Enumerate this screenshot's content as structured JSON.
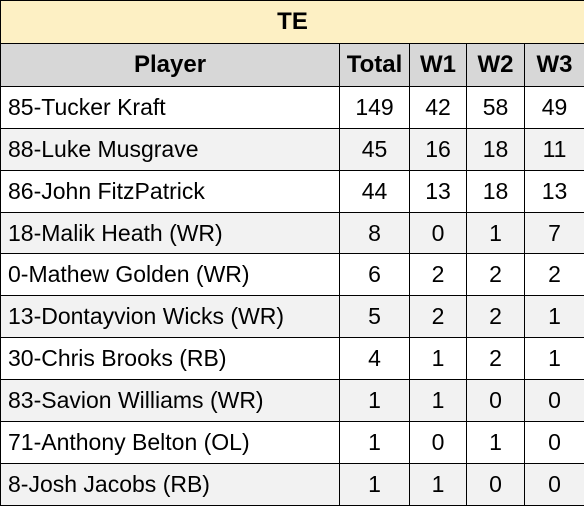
{
  "table": {
    "title": "TE",
    "headers": {
      "player": "Player",
      "total": "Total",
      "w1": "W1",
      "w2": "W2",
      "w3": "W3"
    },
    "rows": [
      {
        "player": "85-Tucker Kraft",
        "total": "149",
        "w1": "42",
        "w2": "58",
        "w3": "49"
      },
      {
        "player": "88-Luke Musgrave",
        "total": "45",
        "w1": "16",
        "w2": "18",
        "w3": "11"
      },
      {
        "player": "86-John FitzPatrick",
        "total": "44",
        "w1": "13",
        "w2": "18",
        "w3": "13"
      },
      {
        "player": "18-Malik Heath (WR)",
        "total": "8",
        "w1": "0",
        "w2": "1",
        "w3": "7"
      },
      {
        "player": "0-Mathew Golden (WR)",
        "total": "6",
        "w1": "2",
        "w2": "2",
        "w3": "2"
      },
      {
        "player": "13-Dontayvion Wicks (WR)",
        "total": "5",
        "w1": "2",
        "w2": "2",
        "w3": "1"
      },
      {
        "player": "30-Chris Brooks (RB)",
        "total": "4",
        "w1": "1",
        "w2": "2",
        "w3": "1"
      },
      {
        "player": "83-Savion Williams (WR)",
        "total": "1",
        "w1": "1",
        "w2": "0",
        "w3": "0"
      },
      {
        "player": "71-Anthony Belton (OL)",
        "total": "1",
        "w1": "0",
        "w2": "1",
        "w3": "0"
      },
      {
        "player": "8-Josh Jacobs (RB)",
        "total": "1",
        "w1": "1",
        "w2": "0",
        "w3": "0"
      }
    ]
  },
  "colors": {
    "title_background": "#fdf0c4",
    "header_background": "#d7d7d7",
    "row_alt_background": "#f2f2f2",
    "border": "#000000"
  }
}
